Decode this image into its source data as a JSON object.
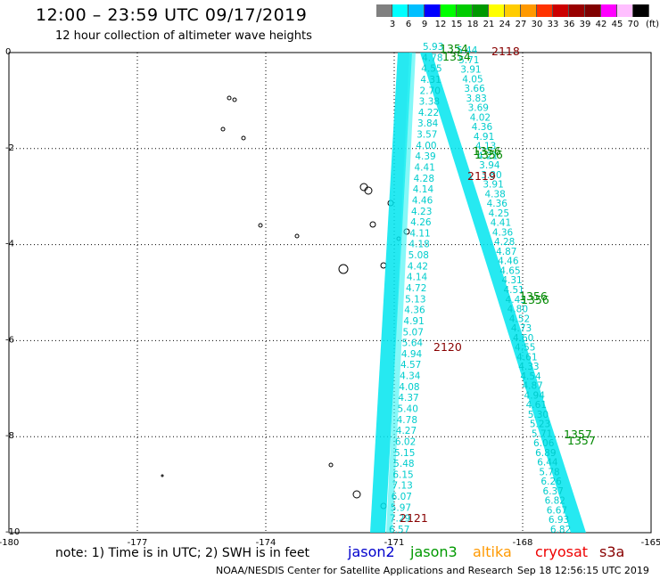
{
  "header": {
    "title": "12:00 – 23:59 UTC 09/17/2019",
    "subtitle": "12 hour collection of altimeter wave heights"
  },
  "color_scale": {
    "labels": [
      "3",
      "6",
      "9",
      "12",
      "15",
      "18",
      "21",
      "24",
      "27",
      "30",
      "33",
      "36",
      "39",
      "42",
      "45",
      "70"
    ],
    "colors": [
      "#808080",
      "#00ffff",
      "#00bfff",
      "#0000ff",
      "#00ff00",
      "#00cc00",
      "#009900",
      "#ffff00",
      "#ffcc00",
      "#ff9900",
      "#ff3300",
      "#cc0000",
      "#990000",
      "#800000",
      "#ff00ff",
      "#ffbfff",
      "#000000"
    ],
    "unit": "(ft)"
  },
  "axes": {
    "x_ticks": [
      "-180",
      "-177",
      "-174",
      "-171",
      "-168",
      "-165"
    ],
    "y_ticks": [
      "0",
      "-2",
      "-4",
      "-6",
      "-8",
      "-10"
    ]
  },
  "tracks": {
    "track_color": "#00e5ee",
    "label_color": "#00cccc",
    "pass_color_jason3": "#008800",
    "pass_color_cryosat": "#880000",
    "cryosat_values": [
      "5.93",
      "4.78",
      "4.55",
      "4.31",
      "2.70",
      "3.38",
      "4.22",
      "3.84",
      "3.57",
      "4.00",
      "4.39",
      "4.41",
      "4.28",
      "4.14",
      "4.46",
      "4.23",
      "4.26",
      "4.11",
      "4.18",
      "5.08",
      "4.42",
      "4.14",
      "4.72",
      "5.13",
      "4.36",
      "4.91",
      "5.07",
      "5.64",
      "4.94",
      "4.57",
      "4.34",
      "4.08",
      "4.37",
      "5.40",
      "4.78",
      "4.27",
      "6.02",
      "5.15",
      "5.48",
      "6.15",
      "7.13",
      "6.07",
      "5.97",
      "7.29",
      "6.57"
    ],
    "jason_values": [
      "5.44",
      "5.71",
      "3.91",
      "4.05",
      "3.66",
      "3.83",
      "3.69",
      "4.02",
      "4.36",
      "4.91",
      "4.13",
      "4.21",
      "3.94",
      "3.80",
      "3.91",
      "4.38",
      "4.36",
      "4.25",
      "4.41",
      "4.36",
      "4.28",
      "4.87",
      "4.46",
      "4.65",
      "4.31",
      "4.51",
      "4.43",
      "4.80",
      "4.52",
      "4.73",
      "4.60",
      "4.55",
      "4.61",
      "4.33",
      "4.54",
      "4.87",
      "4.94",
      "4.61",
      "5.30",
      "5.23",
      "5.71",
      "6.06",
      "6.89",
      "6.44",
      "5.78",
      "6.26",
      "6.37",
      "6.82",
      "6.67",
      "6.93",
      "6.82"
    ],
    "pass_labels": [
      {
        "text": "1354",
        "sat": "jason3"
      },
      {
        "text": "1354",
        "sat": "jason3"
      },
      {
        "text": "2118",
        "sat": "cryosat"
      },
      {
        "text": "1356",
        "sat": "jason3"
      },
      {
        "text": "1356",
        "sat": "jason3"
      },
      {
        "text": "2119",
        "sat": "cryosat"
      },
      {
        "text": "1356",
        "sat": "jason3"
      },
      {
        "text": "1356",
        "sat": "jason3"
      },
      {
        "text": "2120",
        "sat": "cryosat"
      },
      {
        "text": "1357",
        "sat": "jason3"
      },
      {
        "text": "1357",
        "sat": "jason3"
      },
      {
        "text": "2121",
        "sat": "cryosat"
      }
    ]
  },
  "footer": {
    "note": "note: 1) Time is in UTC; 2) SWH is in feet",
    "satellites": [
      {
        "name": "jason2",
        "color": "#0000cc"
      },
      {
        "name": "jason3",
        "color": "#009900"
      },
      {
        "name": "altika",
        "color": "#ff9900"
      },
      {
        "name": "cryosat",
        "color": "#ee0000"
      },
      {
        "name": "s3a",
        "color": "#880000"
      }
    ],
    "credit": "NOAA/NESDIS Center for Satellite Applications and Research",
    "timestamp": "Sep 18 12:56:15 UTC 2019"
  }
}
